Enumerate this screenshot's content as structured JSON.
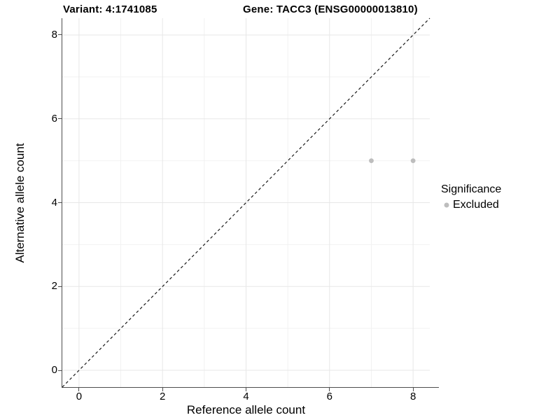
{
  "title": {
    "variant": "Variant: 4:1741085",
    "gene": "Gene: TACC3 (ENSG00000013810)"
  },
  "chart_data": {
    "type": "scatter",
    "title": "Variant: 4:1741085",
    "subtitle": "Gene: TACC3 (ENSG00000013810)",
    "xlabel": "Reference allele count",
    "ylabel": "Alternative allele count",
    "xlim": [
      -0.4,
      8.4
    ],
    "ylim": [
      -0.4,
      8.4
    ],
    "x_major_ticks": [
      0,
      2,
      4,
      6,
      8
    ],
    "y_major_ticks": [
      0,
      2,
      4,
      6,
      8
    ],
    "x_minor_gridlines": [
      1,
      3,
      5,
      7
    ],
    "y_minor_gridlines": [
      1,
      3,
      5,
      7
    ],
    "grid": "on",
    "series": [
      {
        "name": "Excluded",
        "color": "#bdbdbd",
        "points": [
          {
            "x": 7,
            "y": 5
          },
          {
            "x": 8,
            "y": 5
          }
        ]
      }
    ],
    "reference_line": {
      "kind": "identity y=x",
      "style": "dashed",
      "color": "#1a1a1a"
    },
    "legend": {
      "title": "Significance",
      "position": "right",
      "entries": [
        {
          "label": "Excluded",
          "color": "#bdbdbd"
        }
      ]
    }
  },
  "colors": {
    "background": "#ffffff",
    "axis_line": "#4d4d4d",
    "grid_major": "#e7e7e7",
    "grid_minor": "#f2f2f2",
    "point": "#bdbdbd",
    "text": "#000000"
  }
}
